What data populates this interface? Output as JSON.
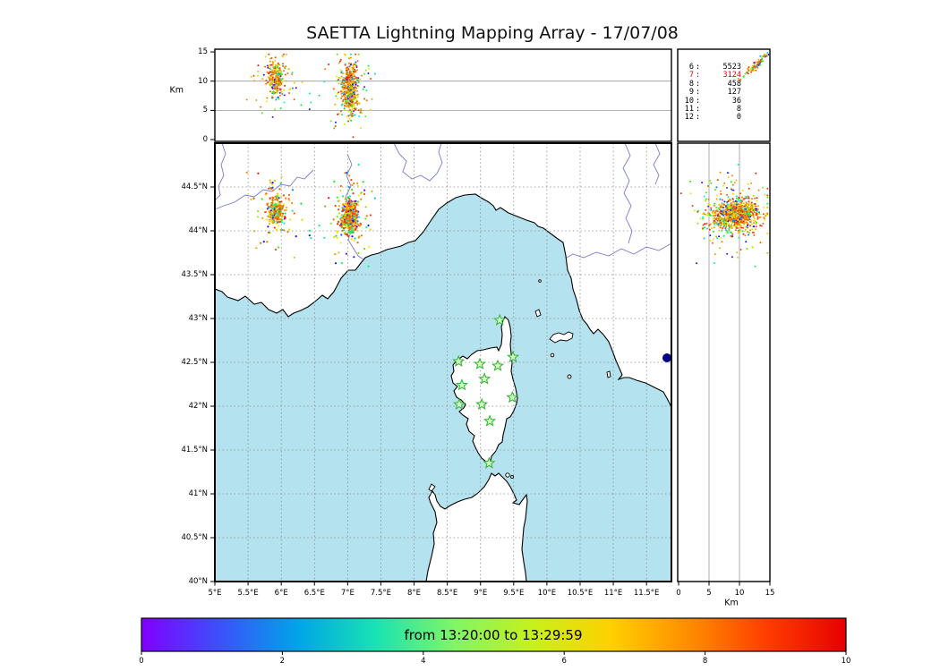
{
  "title": "SAETTA Lightning Mapping Array - 17/07/08",
  "panels": {
    "top": {
      "ylabel": "Km"
    },
    "right": {
      "xlabel": "Km"
    }
  },
  "stats_panel": {
    "separator": ":",
    "rows": [
      {
        "label": "6",
        "value": "5523",
        "color": "#000000"
      },
      {
        "label": "7",
        "value": "3124",
        "color": "#e8000b"
      },
      {
        "label": "8",
        "value": "458",
        "color": "#000000"
      },
      {
        "label": "9",
        "value": "127",
        "color": "#000000"
      },
      {
        "label": "10",
        "value": "36",
        "color": "#000000"
      },
      {
        "label": "11",
        "value": "8",
        "color": "#000000"
      },
      {
        "label": "12",
        "value": "0",
        "color": "#000000"
      }
    ]
  },
  "axes": {
    "alt_ticks": [
      {
        "v": 0,
        "label": "0"
      },
      {
        "v": 5,
        "label": "5"
      },
      {
        "v": 10,
        "label": "10"
      },
      {
        "v": 15,
        "label": "15"
      }
    ],
    "lat_ticks": [
      {
        "v": 40,
        "label": "40°N"
      },
      {
        "v": 40.5,
        "label": "40.5°N"
      },
      {
        "v": 41,
        "label": "41°N"
      },
      {
        "v": 41.5,
        "label": "41.5°N"
      },
      {
        "v": 42,
        "label": "42°N"
      },
      {
        "v": 42.5,
        "label": "42.5°N"
      },
      {
        "v": 43,
        "label": "43°N"
      },
      {
        "v": 43.5,
        "label": "43.5°N"
      },
      {
        "v": 44,
        "label": "44°N"
      },
      {
        "v": 44.5,
        "label": "44.5°N"
      }
    ],
    "lon_ticks": [
      {
        "v": 5,
        "label": "5°E"
      },
      {
        "v": 5.5,
        "label": "5.5°E"
      },
      {
        "v": 6,
        "label": "6°E"
      },
      {
        "v": 6.5,
        "label": "6.5°E"
      },
      {
        "v": 7,
        "label": "7°E"
      },
      {
        "v": 7.5,
        "label": "7.5°E"
      },
      {
        "v": 8,
        "label": "8°E"
      },
      {
        "v": 8.5,
        "label": "8.5°E"
      },
      {
        "v": 9,
        "label": "9°E"
      },
      {
        "v": 9.5,
        "label": "9.5°E"
      },
      {
        "v": 10,
        "label": "10°E"
      },
      {
        "v": 10.5,
        "label": "10.5°E"
      },
      {
        "v": 11,
        "label": "11°E"
      },
      {
        "v": 11.5,
        "label": "11.5°E"
      }
    ]
  },
  "colorbar": {
    "label": "from 13:20:00 to 13:29:59",
    "ticks": [
      {
        "f": 0,
        "label": "0"
      },
      {
        "f": 0.2,
        "label": "2"
      },
      {
        "f": 0.4,
        "label": "4"
      },
      {
        "f": 0.6,
        "label": "6"
      },
      {
        "f": 0.8,
        "label": "8"
      },
      {
        "f": 1,
        "label": "10"
      }
    ],
    "gradient": [
      "#8000ff",
      "#3c50fb",
      "#00a4e8",
      "#19e3b2",
      "#80f566",
      "#c8f119",
      "#ffd000",
      "#ff8c00",
      "#ff3c00",
      "#e60000"
    ]
  },
  "map": {
    "sea_color": "#b5e2ef",
    "land_color": "#ffffff",
    "coast_color": "#000000",
    "river_color": "#6b6bcf",
    "grid_color": "#8a8a8a",
    "lake_color": "#00008b",
    "station_fill": "#d4f7c6",
    "station_stroke": "#2db52d"
  },
  "chart_data": {
    "type": "scatter",
    "title": "SAETTA Lightning Mapping Array - 17/07/08",
    "date": "17/07/08",
    "time_window": {
      "start": "13:20:00",
      "end": "13:29:59"
    },
    "colorbar": {
      "range": [
        0,
        10
      ],
      "tick_labels": [
        0,
        2,
        4,
        6,
        8,
        10
      ],
      "colormap": "rainbow violet-to-red by time"
    },
    "panels": [
      {
        "id": "altitude-vs-longitude",
        "ylabel": "Km",
        "ylim": [
          0,
          15
        ],
        "xlim": [
          5,
          11.9
        ],
        "grid": "horizontal lines at 5 and 10 km"
      },
      {
        "id": "plan-view-map",
        "xlim": [
          5,
          11.9
        ],
        "ylim": [
          40,
          45
        ],
        "grid": "dashed every 0.5 degree",
        "region": "Gulf of Genoa, Corsica, Sardinia, Tuscan coast"
      },
      {
        "id": "altitude-vs-latitude",
        "xlabel": "Km",
        "xlim": [
          0,
          15
        ],
        "ylim": [
          40,
          45
        ],
        "grid": "vertical lines at 5 and 10 km"
      }
    ],
    "source_counts_by_min_stations": [
      {
        "stations": 6,
        "count": 5523,
        "highlighted": false
      },
      {
        "stations": 7,
        "count": 3124,
        "highlighted": true
      },
      {
        "stations": 8,
        "count": 458,
        "highlighted": false
      },
      {
        "stations": 9,
        "count": 127,
        "highlighted": false
      },
      {
        "stations": 10,
        "count": 36,
        "highlighted": false
      },
      {
        "stations": 11,
        "count": 8,
        "highlighted": false
      },
      {
        "stations": 12,
        "count": 0,
        "highlighted": false
      }
    ],
    "storm_cells": [
      {
        "name": "west-cell",
        "lon": 5.93,
        "lat": 44.22,
        "alt_km_mean": 10.3,
        "lon_sd": 0.055,
        "lat_sd": 0.075,
        "alt_sd": 1.5,
        "n": 300
      },
      {
        "name": "east-cell",
        "lon": 7.03,
        "lat": 44.17,
        "alt_km_mean": 8.8,
        "lon_sd": 0.05,
        "lat_sd": 0.08,
        "alt_sd": 2.0,
        "n": 650
      }
    ],
    "background_points": {
      "n": 26,
      "lon_range": [
        5.6,
        7.5
      ],
      "lat_range": [
        43.9,
        44.6
      ],
      "alt_range": [
        3,
        13
      ]
    },
    "corner_cluster": {
      "n": 90,
      "alt_mean": 12.8,
      "alt_sd": 1.1
    },
    "lma_stations_lonlat": [
      [
        9.29,
        42.98
      ],
      [
        8.67,
        42.51
      ],
      [
        8.99,
        42.48
      ],
      [
        9.26,
        42.46
      ],
      [
        9.49,
        42.56
      ],
      [
        8.72,
        42.24
      ],
      [
        9.06,
        42.31
      ],
      [
        9.48,
        42.1
      ],
      [
        8.68,
        42.02
      ],
      [
        9.02,
        42.02
      ],
      [
        9.14,
        41.83
      ],
      [
        9.13,
        41.35
      ]
    ]
  }
}
